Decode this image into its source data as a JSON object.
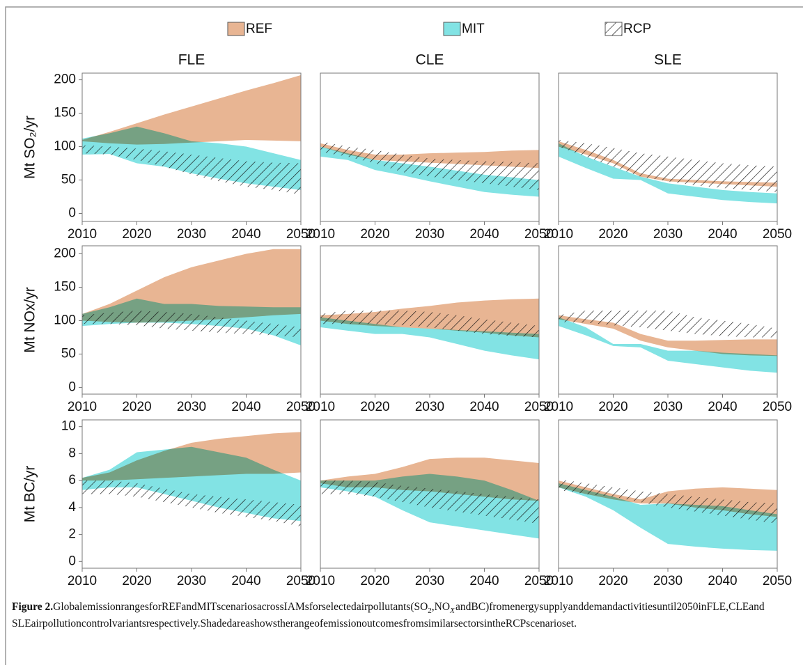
{
  "legend": [
    {
      "name": "REF",
      "color": "#e8b593"
    },
    {
      "name": "MIT",
      "color": "#82e3e4"
    },
    {
      "name": "RCP",
      "color": "#222222"
    }
  ],
  "chart_data": [
    {
      "type": "band",
      "title": "FLE",
      "ylabel": "Mt SO₂/yr",
      "x": [
        2010,
        2015,
        2020,
        2025,
        2030,
        2035,
        2040,
        2045,
        2050
      ],
      "xlim": [
        2010,
        2050
      ],
      "xticks": [
        2010,
        2020,
        2030,
        2040,
        2050
      ],
      "ylim": [
        -12,
        210
      ],
      "yticks": [
        0,
        50,
        100,
        150,
        200
      ],
      "series": [
        {
          "low": [
            108,
            105,
            103,
            104,
            106,
            108,
            110,
            109,
            108
          ],
          "high": [
            110,
            122,
            135,
            148,
            160,
            172,
            184,
            195,
            207
          ]
        },
        {
          "low": [
            88,
            89,
            75,
            70,
            60,
            52,
            45,
            40,
            35
          ],
          "high": [
            112,
            120,
            130,
            120,
            108,
            105,
            100,
            90,
            80
          ]
        },
        {
          "low": [
            90,
            88,
            80,
            70,
            58,
            48,
            40,
            35,
            28
          ],
          "high": [
            102,
            100,
            97,
            93,
            88,
            83,
            78,
            76,
            75
          ]
        }
      ]
    },
    {
      "type": "band",
      "title": "CLE",
      "x": [
        2010,
        2015,
        2020,
        2025,
        2030,
        2035,
        2040,
        2045,
        2050
      ],
      "xlim": [
        2010,
        2050
      ],
      "xticks": [
        2010,
        2020,
        2030,
        2040,
        2050
      ],
      "ylim": [
        -12,
        210
      ],
      "series": [
        {
          "low": [
            100,
            88,
            80,
            78,
            76,
            74,
            72,
            70,
            68
          ],
          "high": [
            105,
            95,
            88,
            88,
            90,
            91,
            92,
            94,
            95
          ]
        },
        {
          "low": [
            85,
            80,
            65,
            57,
            48,
            40,
            32,
            28,
            25
          ],
          "high": [
            100,
            90,
            80,
            75,
            70,
            64,
            58,
            54,
            50
          ]
        },
        {
          "low": [
            92,
            85,
            75,
            62,
            55,
            50,
            45,
            40,
            35
          ],
          "high": [
            108,
            100,
            95,
            88,
            82,
            80,
            78,
            77,
            75
          ]
        }
      ]
    },
    {
      "type": "band",
      "title": "SLE",
      "x": [
        2010,
        2015,
        2020,
        2025,
        2030,
        2035,
        2040,
        2045,
        2050
      ],
      "xlim": [
        2010,
        2050
      ],
      "xticks": [
        2010,
        2020,
        2030,
        2040,
        2050
      ],
      "ylim": [
        -12,
        210
      ],
      "series": [
        {
          "low": [
            100,
            88,
            75,
            55,
            48,
            46,
            44,
            42,
            40
          ],
          "high": [
            108,
            95,
            80,
            60,
            52,
            50,
            48,
            47,
            46
          ]
        },
        {
          "low": [
            85,
            68,
            52,
            50,
            30,
            25,
            20,
            17,
            15
          ],
          "high": [
            105,
            85,
            70,
            55,
            45,
            40,
            35,
            32,
            30
          ]
        },
        {
          "low": [
            100,
            85,
            70,
            55,
            48,
            42,
            38,
            35,
            32
          ],
          "high": [
            110,
            105,
            98,
            90,
            85,
            80,
            75,
            72,
            70
          ]
        }
      ]
    },
    {
      "type": "band",
      "ylabel": "Mt NOx/yr",
      "x": [
        2010,
        2015,
        2020,
        2025,
        2030,
        2035,
        2040,
        2045,
        2050
      ],
      "xlim": [
        2010,
        2050
      ],
      "xticks": [
        2010,
        2020,
        2030,
        2040,
        2050
      ],
      "ylim": [
        -10,
        212
      ],
      "yticks": [
        0,
        50,
        100,
        150,
        200
      ],
      "series": [
        {
          "low": [
            100,
            98,
            97,
            98,
            100,
            102,
            105,
            108,
            110
          ],
          "high": [
            110,
            125,
            145,
            165,
            180,
            190,
            200,
            207,
            207
          ]
        },
        {
          "low": [
            92,
            95,
            97,
            97,
            95,
            92,
            88,
            78,
            63
          ],
          "high": [
            110,
            120,
            133,
            125,
            125,
            122,
            121,
            120,
            120
          ]
        },
        {
          "low": [
            95,
            95,
            93,
            88,
            85,
            82,
            80,
            78,
            75
          ],
          "high": [
            108,
            112,
            115,
            113,
            110,
            105,
            100,
            95,
            90
          ]
        }
      ]
    },
    {
      "type": "band",
      "x": [
        2010,
        2015,
        2020,
        2025,
        2030,
        2035,
        2040,
        2045,
        2050
      ],
      "xlim": [
        2010,
        2050
      ],
      "xticks": [
        2010,
        2020,
        2030,
        2040,
        2050
      ],
      "ylim": [
        -10,
        212
      ],
      "series": [
        {
          "low": [
            100,
            95,
            92,
            90,
            88,
            85,
            82,
            78,
            75
          ],
          "high": [
            108,
            110,
            113,
            118,
            122,
            127,
            130,
            132,
            133
          ]
        },
        {
          "low": [
            90,
            85,
            80,
            80,
            75,
            65,
            55,
            48,
            42
          ],
          "high": [
            105,
            100,
            95,
            90,
            88,
            86,
            84,
            82,
            80
          ]
        },
        {
          "low": [
            95,
            95,
            95,
            93,
            90,
            85,
            80,
            77,
            75
          ],
          "high": [
            110,
            115,
            115,
            115,
            113,
            108,
            102,
            97,
            92
          ]
        }
      ]
    },
    {
      "type": "band",
      "x": [
        2010,
        2015,
        2020,
        2025,
        2030,
        2035,
        2040,
        2045,
        2050
      ],
      "xlim": [
        2010,
        2050
      ],
      "xticks": [
        2010,
        2020,
        2030,
        2040,
        2050
      ],
      "ylim": [
        -10,
        212
      ],
      "series": [
        {
          "low": [
            102,
            95,
            88,
            70,
            60,
            55,
            50,
            48,
            47
          ],
          "high": [
            108,
            102,
            97,
            80,
            70,
            70,
            71,
            72,
            72
          ]
        },
        {
          "low": [
            92,
            78,
            62,
            60,
            40,
            35,
            30,
            25,
            22
          ],
          "high": [
            105,
            90,
            65,
            65,
            55,
            55,
            52,
            50,
            48
          ]
        },
        {
          "low": [
            98,
            97,
            93,
            90,
            85,
            80,
            77,
            75,
            75
          ],
          "high": [
            108,
            115,
            115,
            115,
            115,
            105,
            100,
            95,
            88
          ]
        }
      ]
    },
    {
      "type": "band",
      "ylabel": "Mt BC/yr",
      "x": [
        2010,
        2015,
        2020,
        2025,
        2030,
        2035,
        2040,
        2045,
        2050
      ],
      "xlim": [
        2010,
        2050
      ],
      "xticks": [
        2010,
        2020,
        2030,
        2040,
        2050
      ],
      "ylim": [
        -0.5,
        10.5
      ],
      "yticks": [
        0,
        2,
        4,
        6,
        8,
        10
      ],
      "series": [
        {
          "low": [
            6.0,
            6.0,
            6.1,
            6.2,
            6.3,
            6.4,
            6.5,
            6.5,
            6.6
          ],
          "high": [
            6.2,
            6.6,
            7.5,
            8.2,
            8.8,
            9.1,
            9.3,
            9.5,
            9.6
          ]
        },
        {
          "low": [
            5.3,
            5.5,
            5.5,
            5.0,
            4.5,
            4.0,
            3.6,
            3.2,
            3.0
          ],
          "high": [
            6.2,
            6.8,
            8.1,
            8.3,
            8.5,
            8.1,
            7.7,
            6.8,
            6.0
          ]
        },
        {
          "low": [
            5.0,
            5.0,
            4.8,
            4.4,
            4.0,
            3.6,
            3.3,
            3.0,
            2.6
          ],
          "high": [
            6.0,
            6.0,
            5.8,
            5.4,
            5.0,
            4.8,
            4.6,
            4.4,
            4.2
          ]
        }
      ]
    },
    {
      "type": "band",
      "x": [
        2010,
        2015,
        2020,
        2025,
        2030,
        2035,
        2040,
        2045,
        2050
      ],
      "xlim": [
        2010,
        2050
      ],
      "xticks": [
        2010,
        2020,
        2030,
        2040,
        2050
      ],
      "ylim": [
        -0.5,
        10.5
      ],
      "series": [
        {
          "low": [
            5.8,
            5.5,
            5.5,
            5.3,
            5.2,
            5.0,
            4.8,
            4.6,
            4.5
          ],
          "high": [
            6.0,
            6.3,
            6.5,
            7.0,
            7.6,
            7.7,
            7.7,
            7.5,
            7.3
          ]
        },
        {
          "low": [
            5.5,
            5.2,
            4.8,
            3.8,
            2.9,
            2.6,
            2.3,
            2.0,
            1.7
          ],
          "high": [
            6.0,
            6.0,
            6.0,
            6.3,
            6.5,
            6.3,
            6.0,
            5.3,
            4.5
          ]
        },
        {
          "low": [
            5.0,
            5.0,
            4.8,
            4.4,
            4.0,
            3.7,
            3.4,
            3.1,
            2.8
          ],
          "high": [
            6.0,
            6.0,
            5.9,
            5.6,
            5.4,
            5.2,
            5.0,
            4.8,
            4.6
          ]
        }
      ]
    },
    {
      "type": "band",
      "x": [
        2010,
        2015,
        2020,
        2025,
        2030,
        2035,
        2040,
        2045,
        2050
      ],
      "xlim": [
        2010,
        2050
      ],
      "xticks": [
        2010,
        2020,
        2030,
        2040,
        2050
      ],
      "ylim": [
        -0.5,
        10.5
      ],
      "series": [
        {
          "low": [
            5.5,
            5.0,
            4.6,
            4.3,
            4.3,
            4.0,
            3.8,
            3.5,
            3.3
          ],
          "high": [
            6.0,
            5.5,
            5.0,
            4.6,
            5.2,
            5.4,
            5.5,
            5.4,
            5.3
          ]
        },
        {
          "low": [
            5.5,
            4.8,
            3.8,
            2.5,
            1.3,
            1.1,
            0.95,
            0.85,
            0.8
          ],
          "high": [
            5.8,
            5.3,
            4.8,
            4.2,
            4.3,
            4.2,
            4.1,
            3.8,
            3.5
          ]
        },
        {
          "low": [
            5.3,
            5.0,
            4.8,
            4.4,
            4.0,
            3.7,
            3.4,
            3.1,
            2.8
          ],
          "high": [
            6.1,
            5.8,
            5.5,
            5.2,
            5.0,
            4.8,
            4.6,
            4.4,
            4.3
          ]
        }
      ]
    }
  ],
  "caption": {
    "label": "Figure 2.",
    "parts": [
      " Global emission ranges for REF and MIT scenarios across IAMs for selected air pollutants (SO",
      "2",
      ", NO",
      "X",
      " and BC) from energy supply and demand activities until 2050 in FLE, CLE and SLE air pollution control variants respectively. Shaded area shows the range of emission outcomes from similar sectors in the RCP scenario set."
    ]
  }
}
